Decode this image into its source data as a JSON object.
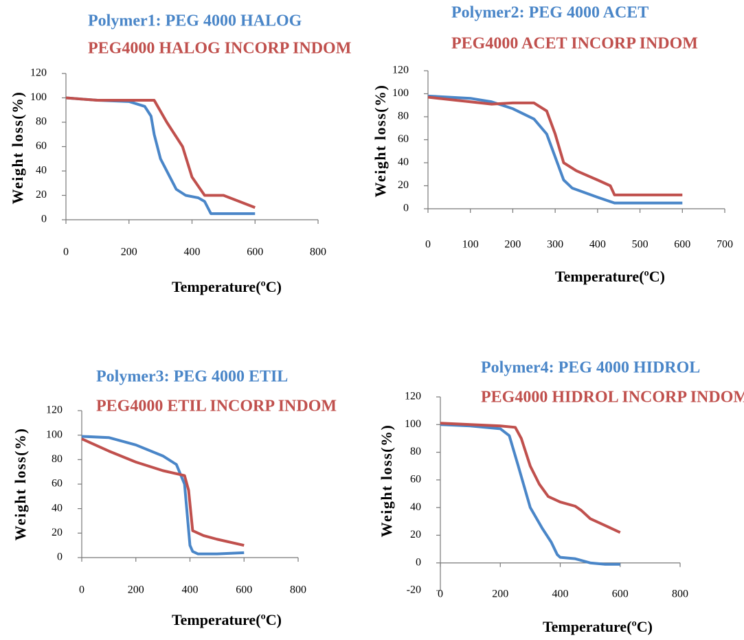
{
  "chart_data": [
    {
      "type": "line",
      "xlabel": "Temperature(ºC)",
      "ylabel": "Weight loss(%)",
      "xlim": [
        0,
        800
      ],
      "xticks": [
        0,
        200,
        400,
        600,
        800
      ],
      "ylim": [
        0,
        120
      ],
      "yticks": [
        0,
        20,
        40,
        60,
        80,
        100,
        120
      ],
      "series": [
        {
          "name": "Polymer1: PEG 4000 HALOG",
          "color": "#4a86c8",
          "x": [
            0,
            100,
            200,
            250,
            270,
            280,
            300,
            350,
            380,
            420,
            440,
            460,
            500,
            600
          ],
          "values": [
            100,
            98,
            97,
            93,
            85,
            70,
            50,
            25,
            20,
            18,
            15,
            5,
            5,
            5
          ]
        },
        {
          "name": "PEG4000 HALOG INCORP INDOM",
          "color": "#c0504d",
          "x": [
            0,
            100,
            200,
            280,
            320,
            370,
            400,
            440,
            500,
            550,
            600
          ],
          "values": [
            100,
            98,
            98,
            98,
            80,
            60,
            35,
            20,
            20,
            15,
            10
          ]
        }
      ]
    },
    {
      "type": "line",
      "xlabel": "Temperature(ºC)",
      "ylabel": "Weight loss(%)",
      "xlim": [
        0,
        700
      ],
      "xticks": [
        0,
        100,
        200,
        300,
        400,
        500,
        600,
        700
      ],
      "ylim": [
        0,
        120
      ],
      "yticks": [
        0,
        20,
        40,
        60,
        80,
        100,
        120
      ],
      "series": [
        {
          "name": "Polymer2: PEG 4000 ACET",
          "color": "#4a86c8",
          "x": [
            0,
            100,
            150,
            200,
            250,
            280,
            300,
            320,
            340,
            400,
            440,
            500,
            600
          ],
          "values": [
            98,
            96,
            93,
            87,
            78,
            65,
            45,
            25,
            18,
            10,
            5,
            5,
            5
          ]
        },
        {
          "name": "PEG4000 ACET INCORP INDOM",
          "color": "#c0504d",
          "x": [
            0,
            100,
            150,
            200,
            250,
            280,
            300,
            320,
            350,
            400,
            430,
            440,
            500,
            600
          ],
          "values": [
            97,
            93,
            91,
            92,
            92,
            85,
            65,
            40,
            33,
            25,
            20,
            12,
            12,
            12
          ]
        }
      ]
    },
    {
      "type": "line",
      "xlabel": "Temperature(ºC)",
      "ylabel": "Weight loss(%)",
      "xlim": [
        0,
        800
      ],
      "xticks": [
        0,
        200,
        400,
        600,
        800
      ],
      "ylim": [
        0,
        120
      ],
      "yticks": [
        0,
        20,
        40,
        60,
        80,
        100,
        120
      ],
      "series": [
        {
          "name": "Polymer3: PEG 4000 ETIL",
          "color": "#4a86c8",
          "x": [
            0,
            100,
            200,
            300,
            350,
            380,
            400,
            410,
            430,
            500,
            600
          ],
          "values": [
            99,
            98,
            92,
            83,
            76,
            60,
            10,
            5,
            3,
            3,
            4
          ]
        },
        {
          "name": "PEG4000 ETIL INCORP INDOM",
          "color": "#c0504d",
          "x": [
            0,
            100,
            200,
            300,
            380,
            395,
            410,
            450,
            500,
            600
          ],
          "values": [
            97,
            87,
            78,
            71,
            67,
            55,
            22,
            18,
            15,
            10
          ]
        }
      ]
    },
    {
      "type": "line",
      "xlabel": "Temperature(ºC)",
      "ylabel": "Weight loss(%)",
      "xlim": [
        0,
        800
      ],
      "xticks": [
        0,
        200,
        400,
        600,
        800
      ],
      "ylim": [
        -20,
        120
      ],
      "yticks": [
        -20,
        0,
        20,
        40,
        60,
        80,
        100,
        120
      ],
      "series": [
        {
          "name": "Polymer4: PEG 4000 HIDROL",
          "color": "#4a86c8",
          "x": [
            0,
            100,
            200,
            230,
            260,
            280,
            300,
            340,
            370,
            390,
            400,
            450,
            500,
            550,
            600
          ],
          "values": [
            100,
            99,
            97,
            92,
            70,
            55,
            40,
            25,
            15,
            6,
            4,
            3,
            0,
            -1,
            -1
          ]
        },
        {
          "name": "PEG4000 HIDROL INCORP INDOM",
          "color": "#c0504d",
          "x": [
            0,
            100,
            200,
            250,
            270,
            300,
            330,
            360,
            400,
            450,
            470,
            500,
            550,
            600
          ],
          "values": [
            101,
            100,
            99,
            98,
            90,
            70,
            57,
            48,
            44,
            41,
            38,
            32,
            27,
            22
          ]
        }
      ]
    }
  ]
}
